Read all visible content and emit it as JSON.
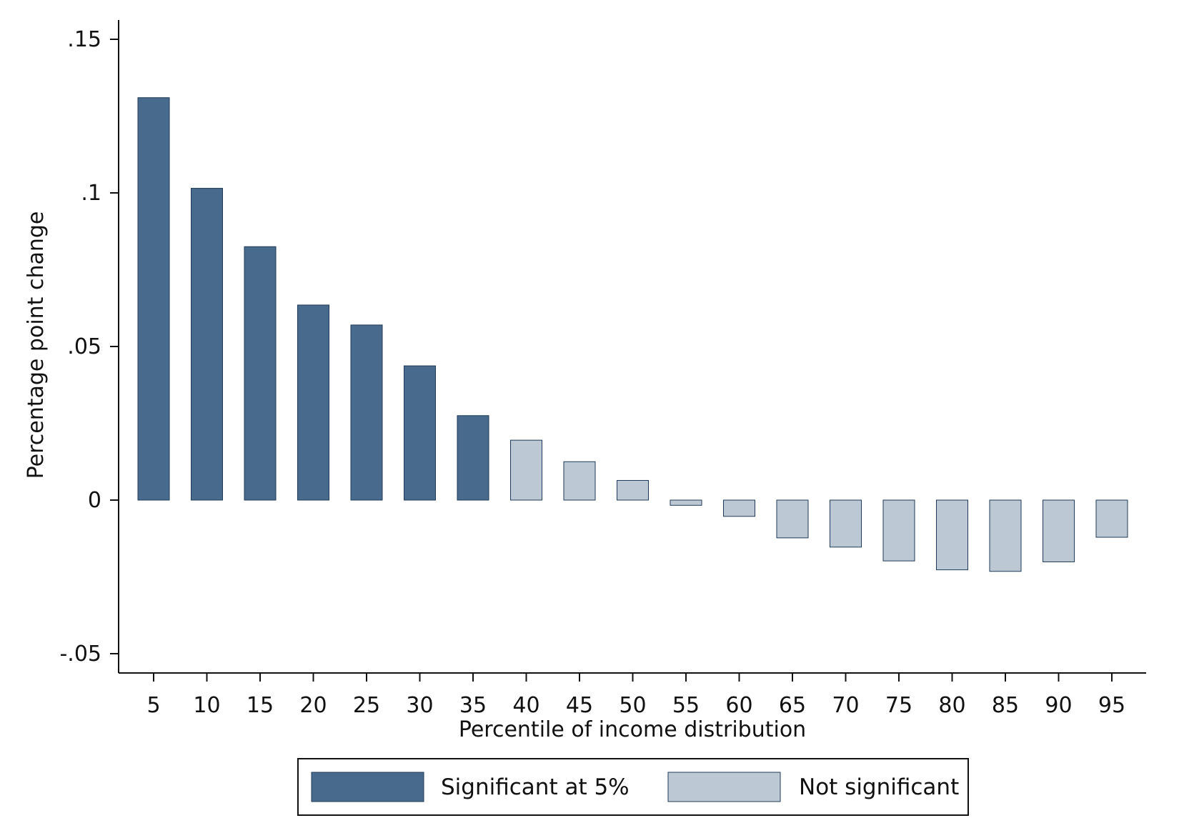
{
  "chart_data": {
    "type": "bar",
    "xlabel": "Percentile of income distribution",
    "ylabel": "Percentage point change",
    "ylim": [
      -0.0565,
      0.1575
    ],
    "yticks": [
      {
        "value": -0.05,
        "label": "-.05"
      },
      {
        "value": 0,
        "label": "0"
      },
      {
        "value": 0.05,
        "label": ".05"
      },
      {
        "value": 0.1,
        "label": ".1"
      },
      {
        "value": 0.15,
        "label": ".15"
      }
    ],
    "categories": [
      "5",
      "10",
      "15",
      "20",
      "25",
      "30",
      "35",
      "40",
      "45",
      "50",
      "55",
      "60",
      "65",
      "70",
      "75",
      "80",
      "85",
      "90",
      "95"
    ],
    "values": [
      0.131,
      0.1015,
      0.0825,
      0.0635,
      0.057,
      0.0437,
      0.0275,
      0.0195,
      0.0125,
      0.0064,
      -0.0017,
      -0.0053,
      -0.0123,
      -0.0153,
      -0.0198,
      -0.0227,
      -0.0232,
      -0.0201,
      -0.0121
    ],
    "significant": [
      true,
      true,
      true,
      true,
      true,
      true,
      true,
      false,
      false,
      false,
      false,
      false,
      false,
      false,
      false,
      false,
      false,
      false,
      false
    ],
    "colors": {
      "significant": "#486a8c",
      "not_significant": "#bcc8d3",
      "outline": "#1f3a57"
    },
    "grid": false,
    "legend": {
      "position": "bottom",
      "entries": [
        {
          "label": "Significant at 5%",
          "key": "significant"
        },
        {
          "label": "Not significant",
          "key": "not_significant"
        }
      ]
    }
  }
}
